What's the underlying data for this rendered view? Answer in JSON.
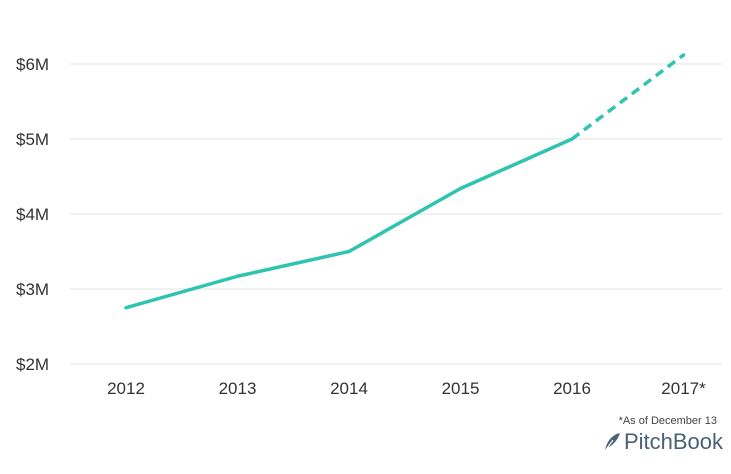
{
  "chart_data": {
    "type": "line",
    "categories": [
      "2012",
      "2013",
      "2014",
      "2015",
      "2016",
      "2017*"
    ],
    "series": [
      {
        "values": [
          2.75,
          3.17,
          3.5,
          4.34,
          5.0,
          6.12
        ],
        "projected_from_index": 4
      }
    ],
    "y_ticks": [
      2,
      3,
      4,
      5,
      6
    ],
    "y_tick_labels": [
      "$2M",
      "$3M",
      "$4M",
      "$5M",
      "$6M"
    ],
    "ylim": [
      2,
      6.5
    ],
    "grid": true,
    "line_color": "#2ec4b0",
    "grid_color": "#e3e3e3"
  },
  "footnote": "*As of December 13",
  "brand": {
    "name": "PitchBook",
    "icon": "pitchbook-logo-icon",
    "color": "#4a6176"
  }
}
